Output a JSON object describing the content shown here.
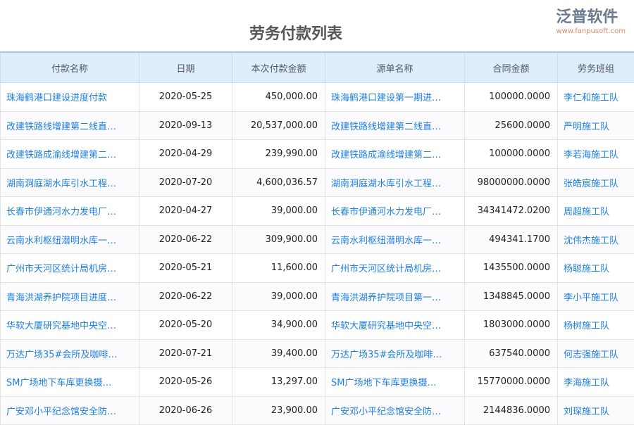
{
  "title": "劳务付款列表",
  "columns": [
    "付款名称",
    "日期",
    "本次付款金额",
    "源单名称",
    "合同金额",
    "劳务班组"
  ],
  "rows": [
    [
      "珠海鹤港口建设进度付款",
      "2020-05-25",
      "450,000.00",
      "珠海鹤港口建设第一期进…",
      "100000.0000",
      "李仁和施工队"
    ],
    [
      "改建铁路线增建第二线直…",
      "2020-09-13",
      "20,537,000.00",
      "改建铁路线增建第二线直…",
      "25600.0000",
      "严明施工队"
    ],
    [
      "改建铁路成渝线增建第二…",
      "2020-04-29",
      "239,990.00",
      "改建铁路成渝线增建第二…",
      "100000.0000",
      "李若海施工队"
    ],
    [
      "湖南洞庭湖水库引水工程…",
      "2020-07-20",
      "4,600,036.57",
      "湖南洞庭湖水库引水工程…",
      "98000000.0000",
      "张皓宸施工队"
    ],
    [
      "长春市伊通河水力发电厂…",
      "2020-04-27",
      "39,000.00",
      "长春市伊通河水力发电厂…",
      "34341472.0200",
      "周超施工队"
    ],
    [
      "云南水利枢纽潜明水库一…",
      "2020-06-22",
      "309,900.00",
      "云南水利枢纽潜明水库一…",
      "494341.1700",
      "沈伟杰施工队"
    ],
    [
      "广州市天河区统计局机房…",
      "2020-05-21",
      "11,600.00",
      "广州市天河区统计局机房…",
      "1435500.0000",
      "杨聪施工队"
    ],
    [
      "青海洪湖养护院项目进度…",
      "2020-06-22",
      "39,000.00",
      "青海洪湖养护院项目第一…",
      "1348845.0000",
      "李小平施工队"
    ],
    [
      "华软大厦研究基地中央空…",
      "2020-05-20",
      "34,900.00",
      "华软大厦研究基地中央空…",
      "1803000.0000",
      "杨树施工队"
    ],
    [
      "万达广场35#会所及咖啡…",
      "2020-07-21",
      "39,400.00",
      "万达广场35#会所及咖啡…",
      "637540.0000",
      "何志强施工队"
    ],
    [
      "SM广场地下车库更换摄…",
      "2020-05-26",
      "13,297.00",
      "SM广场地下车库更换摄…",
      "15770000.0000",
      "李海施工队"
    ],
    [
      "广安邓小平纪念馆安全防…",
      "2020-06-26",
      "23,900.00",
      "广安邓小平纪念馆安全防…",
      "2144836.0000",
      "刘琛施工队"
    ]
  ],
  "watermark": {
    "name": "泛普软件",
    "url": "www.fanpusoft.com"
  }
}
